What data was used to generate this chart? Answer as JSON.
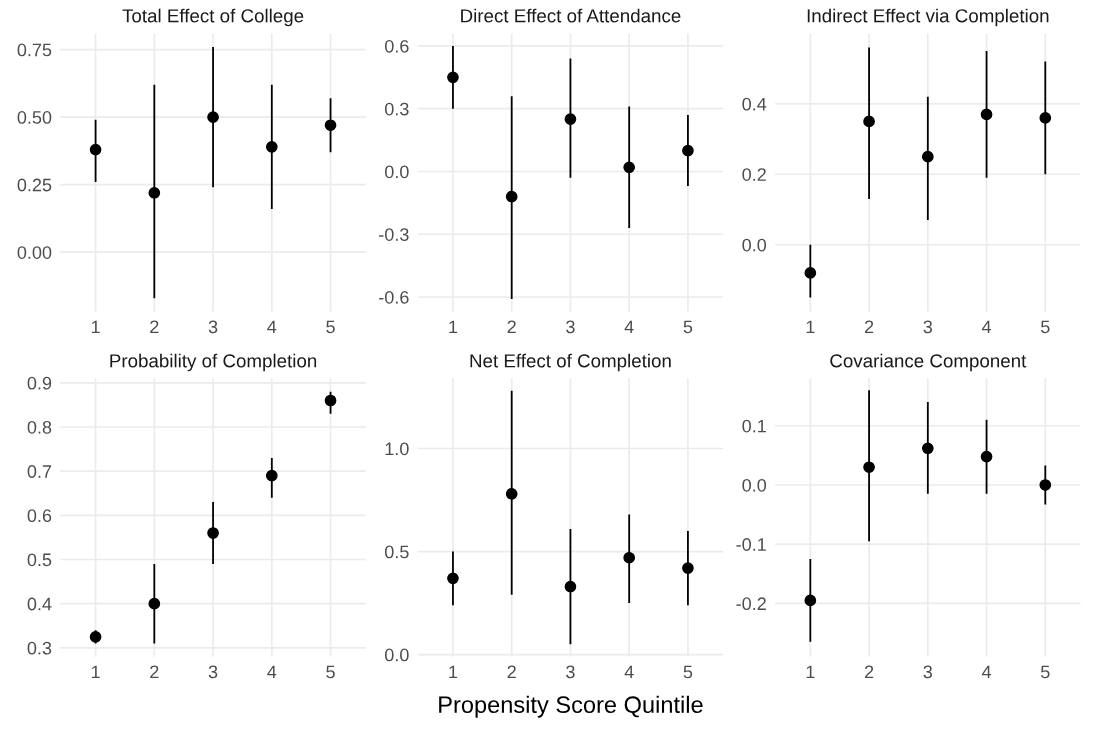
{
  "chart_data": [
    {
      "type": "scatter",
      "title": "Total Effect of College",
      "categories": [
        "1",
        "2",
        "3",
        "4",
        "5"
      ],
      "marker": "circle",
      "grid": true,
      "ylim": [
        -0.22,
        0.81
      ],
      "yticks": [
        {
          "value": 0,
          "label": "0.00"
        },
        0.25,
        {
          "value": 0.5,
          "label": "0.50"
        },
        0.75
      ],
      "series": [
        {
          "color": "#000000",
          "values": [
            0.38,
            0.22,
            0.5,
            0.39,
            0.47
          ],
          "errors": [
            [
              0.26,
              0.49
            ],
            [
              -0.17,
              0.62
            ],
            [
              0.24,
              0.76
            ],
            [
              0.16,
              0.62
            ],
            [
              0.37,
              0.57
            ]
          ]
        }
      ]
    },
    {
      "type": "scatter",
      "title": "Direct Effect of Attendance",
      "categories": [
        "1",
        "2",
        "3",
        "4",
        "5"
      ],
      "marker": "circle",
      "grid": true,
      "ylim": [
        -0.67,
        0.66
      ],
      "yticks": [
        -0.6,
        -0.3,
        {
          "value": 0,
          "label": "0.0"
        },
        0.3,
        0.6
      ],
      "series": [
        {
          "color": "#000000",
          "values": [
            0.45,
            -0.12,
            0.25,
            0.02,
            0.1
          ],
          "errors": [
            [
              0.3,
              0.6
            ],
            [
              -0.61,
              0.36
            ],
            [
              -0.03,
              0.54
            ],
            [
              -0.27,
              0.31
            ],
            [
              -0.07,
              0.27
            ]
          ]
        }
      ]
    },
    {
      "type": "scatter",
      "title": "Indirect Effect via Completion",
      "categories": [
        "1",
        "2",
        "3",
        "4",
        "5"
      ],
      "marker": "circle",
      "grid": true,
      "ylim": [
        -0.19,
        0.6
      ],
      "yticks": [
        {
          "value": 0,
          "label": "0.0"
        },
        0.2,
        0.4
      ],
      "series": [
        {
          "color": "#000000",
          "values": [
            -0.08,
            0.35,
            0.25,
            0.37,
            0.36
          ],
          "errors": [
            [
              -0.15,
              0.0
            ],
            [
              0.13,
              0.56
            ],
            [
              0.07,
              0.42
            ],
            [
              0.19,
              0.55
            ],
            [
              0.2,
              0.52
            ]
          ]
        }
      ]
    },
    {
      "type": "scatter",
      "title": "Probability of Completion",
      "categories": [
        "1",
        "2",
        "3",
        "4",
        "5"
      ],
      "marker": "circle",
      "grid": true,
      "ylim": [
        0.28,
        0.91
      ],
      "yticks": [
        0.3,
        0.4,
        0.5,
        0.6,
        0.7,
        0.8,
        0.9
      ],
      "series": [
        {
          "color": "#000000",
          "values": [
            0.325,
            0.4,
            0.56,
            0.69,
            0.86
          ],
          "errors": [
            [
              0.31,
              0.34
            ],
            [
              0.31,
              0.49
            ],
            [
              0.49,
              0.63
            ],
            [
              0.64,
              0.73
            ],
            [
              0.83,
              0.88
            ]
          ]
        }
      ]
    },
    {
      "type": "scatter",
      "title": "Net Effect of Completion",
      "xlabel": "Propensity Score Quintile",
      "categories": [
        "1",
        "2",
        "3",
        "4",
        "5"
      ],
      "marker": "circle",
      "grid": true,
      "ylim": [
        -0.01,
        1.34
      ],
      "yticks": [
        {
          "value": 0,
          "label": "0.0"
        },
        0.5,
        {
          "value": 1,
          "label": "1.0"
        }
      ],
      "series": [
        {
          "color": "#000000",
          "values": [
            0.37,
            0.78,
            0.33,
            0.47,
            0.42
          ],
          "errors": [
            [
              0.24,
              0.5
            ],
            [
              0.29,
              1.28
            ],
            [
              0.05,
              0.61
            ],
            [
              0.25,
              0.68
            ],
            [
              0.24,
              0.6
            ]
          ]
        }
      ]
    },
    {
      "type": "scatter",
      "title": "Covariance Component",
      "categories": [
        "1",
        "2",
        "3",
        "4",
        "5"
      ],
      "marker": "circle",
      "grid": true,
      "ylim": [
        -0.29,
        0.18
      ],
      "yticks": [
        -0.2,
        -0.1,
        {
          "value": 0,
          "label": "0.0"
        },
        0.1
      ],
      "series": [
        {
          "color": "#000000",
          "values": [
            -0.195,
            0.03,
            0.062,
            0.048,
            0.0
          ],
          "errors": [
            [
              -0.265,
              -0.125
            ],
            [
              -0.095,
              0.16
            ],
            [
              -0.015,
              0.14
            ],
            [
              -0.015,
              0.11
            ],
            [
              -0.033,
              0.033
            ]
          ]
        }
      ]
    }
  ]
}
